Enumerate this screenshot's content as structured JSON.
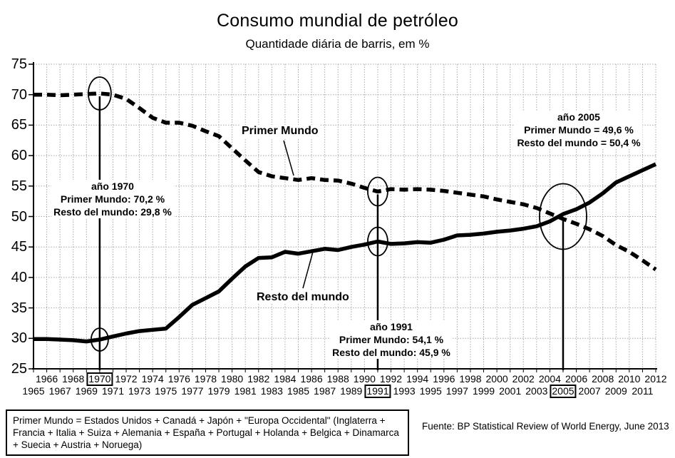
{
  "colors": {
    "line": "#000000",
    "grid": "#a8a8a8",
    "background": "#ffffff"
  },
  "annotations": [
    {
      "year": 1970,
      "lines": [
        "año 1970",
        "Primer Mundo: 70,2 %",
        "Resto del mundo: 29,8 %"
      ]
    },
    {
      "year": 1991,
      "lines": [
        "año 1991",
        "Primer Mundo: 54,1 %",
        "Resto del mundo: 45,9 %"
      ]
    },
    {
      "year": 2005,
      "lines": [
        "año 2005",
        "Primer Mundo = 49,6 %",
        "Resto del mundo = 50,4 %"
      ]
    }
  ],
  "footnote": "Primer Mundo = Estados Unidos + Canadá + Japón + \"Europa Occidental\" (Inglaterra + Francia + Italia + Suiza + Alemania + España + Portugal + Holanda + Belgica + Dinamarca + Suecia + Austria + Noruega)",
  "source": "Fuente: BP Statistical Review of World Energy, June 2013",
  "chart_data": {
    "type": "line",
    "title": "Consumo mundial de petróleo",
    "subtitle": "Quantidade diária de barris, em %",
    "xlabel": "",
    "ylabel": "",
    "ylim": [
      25,
      75
    ],
    "y_ticks": [
      75,
      70,
      65,
      60,
      55,
      50,
      45,
      40,
      35,
      30,
      25
    ],
    "grid": true,
    "x": [
      1965,
      1966,
      1967,
      1968,
      1969,
      1970,
      1971,
      1972,
      1973,
      1974,
      1975,
      1976,
      1977,
      1978,
      1979,
      1980,
      1981,
      1982,
      1983,
      1984,
      1985,
      1986,
      1987,
      1988,
      1989,
      1990,
      1991,
      1992,
      1993,
      1994,
      1995,
      1996,
      1997,
      1998,
      1999,
      2000,
      2001,
      2002,
      2003,
      2004,
      2005,
      2006,
      2007,
      2008,
      2009,
      2010,
      2011,
      2012
    ],
    "series": [
      {
        "name": "Primer Mundo",
        "line_style": "dashed",
        "values": [
          70.0,
          70.0,
          69.9,
          70.0,
          70.1,
          70.2,
          70.0,
          69.3,
          67.8,
          66.2,
          65.4,
          65.4,
          64.9,
          64.0,
          63.2,
          61.2,
          59.2,
          57.3,
          56.6,
          56.3,
          56.0,
          56.3,
          56.0,
          55.9,
          55.4,
          54.7,
          54.1,
          54.5,
          54.4,
          54.5,
          54.4,
          54.2,
          53.9,
          53.6,
          53.3,
          52.8,
          52.4,
          52.0,
          51.4,
          50.5,
          49.6,
          48.8,
          47.9,
          46.8,
          45.3,
          44.2,
          42.8,
          41.3
        ]
      },
      {
        "name": "Resto del mundo",
        "line_style": "solid",
        "values": [
          29.9,
          29.9,
          29.8,
          29.7,
          29.5,
          29.8,
          30.3,
          30.8,
          31.2,
          31.4,
          31.6,
          33.5,
          35.5,
          36.6,
          37.7,
          39.8,
          41.8,
          43.2,
          43.3,
          44.2,
          43.9,
          44.3,
          44.7,
          44.5,
          45.0,
          45.4,
          45.9,
          45.5,
          45.6,
          45.8,
          45.7,
          46.2,
          46.9,
          47.0,
          47.2,
          47.5,
          47.7,
          48.0,
          48.4,
          49.2,
          50.4,
          51.2,
          52.3,
          53.8,
          55.6,
          56.6,
          57.6,
          58.6
        ]
      }
    ],
    "markers": [
      {
        "year": 1970,
        "circled_values": [
          70.2,
          29.8
        ]
      },
      {
        "year": 1991,
        "circled_values": [
          54.1,
          45.9
        ]
      },
      {
        "year": 2005,
        "circled_values": [
          50.0
        ]
      }
    ],
    "boxed_year_labels": [
      1970,
      1991,
      2005
    ],
    "legend_position": "inline-labels"
  }
}
